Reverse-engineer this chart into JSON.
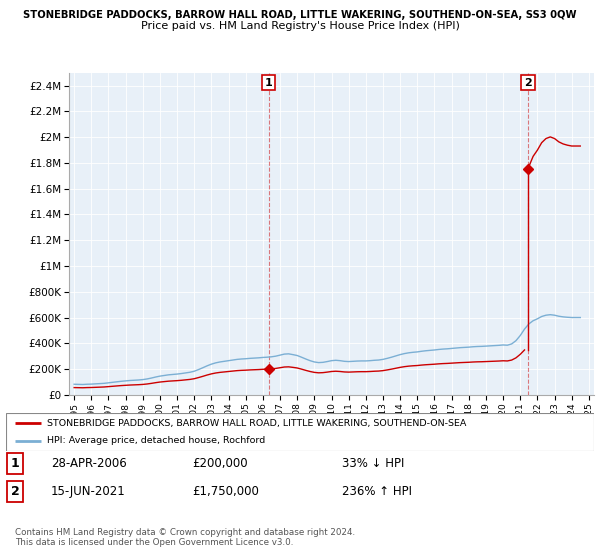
{
  "title_top": "STONEBRIDGE PADDOCKS, BARROW HALL ROAD, LITTLE WAKERING, SOUTHEND-ON-SEA, SS3 0QW",
  "title_sub": "Price paid vs. HM Land Registry's House Price Index (HPI)",
  "ytick_values": [
    0,
    200000,
    400000,
    600000,
    800000,
    1000000,
    1200000,
    1400000,
    1600000,
    1800000,
    2000000,
    2200000,
    2400000
  ],
  "ylim": [
    0,
    2500000
  ],
  "hpi_color": "#7bafd4",
  "price_color": "#cc0000",
  "dashed_color": "#cc0000",
  "sale1_date": "28-APR-2006",
  "sale1_price": 200000,
  "sale2_date": "15-JUN-2021",
  "sale2_price": 1750000,
  "sale1_hpi_pct": "33% ↓ HPI",
  "sale2_hpi_pct": "236% ↑ HPI",
  "legend_red": "STONEBRIDGE PADDOCKS, BARROW HALL ROAD, LITTLE WAKERING, SOUTHEND-ON-SEA",
  "legend_blue": "HPI: Average price, detached house, Rochford",
  "footnote": "Contains HM Land Registry data © Crown copyright and database right 2024.\nThis data is licensed under the Open Government Licence v3.0.",
  "x_start_year": 1995,
  "x_end_year": 2025,
  "hpi_data_years": [
    1995.0,
    1995.25,
    1995.5,
    1995.75,
    1996.0,
    1996.25,
    1996.5,
    1996.75,
    1997.0,
    1997.25,
    1997.5,
    1997.75,
    1998.0,
    1998.25,
    1998.5,
    1998.75,
    1999.0,
    1999.25,
    1999.5,
    1999.75,
    2000.0,
    2000.25,
    2000.5,
    2000.75,
    2001.0,
    2001.25,
    2001.5,
    2001.75,
    2002.0,
    2002.25,
    2002.5,
    2002.75,
    2003.0,
    2003.25,
    2003.5,
    2003.75,
    2004.0,
    2004.25,
    2004.5,
    2004.75,
    2005.0,
    2005.25,
    2005.5,
    2005.75,
    2006.0,
    2006.25,
    2006.5,
    2006.75,
    2007.0,
    2007.25,
    2007.5,
    2007.75,
    2008.0,
    2008.25,
    2008.5,
    2008.75,
    2009.0,
    2009.25,
    2009.5,
    2009.75,
    2010.0,
    2010.25,
    2010.5,
    2010.75,
    2011.0,
    2011.25,
    2011.5,
    2011.75,
    2012.0,
    2012.25,
    2012.5,
    2012.75,
    2013.0,
    2013.25,
    2013.5,
    2013.75,
    2014.0,
    2014.25,
    2014.5,
    2014.75,
    2015.0,
    2015.25,
    2015.5,
    2015.75,
    2016.0,
    2016.25,
    2016.5,
    2016.75,
    2017.0,
    2017.25,
    2017.5,
    2017.75,
    2018.0,
    2018.25,
    2018.5,
    2018.75,
    2019.0,
    2019.25,
    2019.5,
    2019.75,
    2020.0,
    2020.25,
    2020.5,
    2020.75,
    2021.0,
    2021.25,
    2021.5,
    2021.75,
    2022.0,
    2022.25,
    2022.5,
    2022.75,
    2023.0,
    2023.25,
    2023.5,
    2023.75,
    2024.0,
    2024.25,
    2024.5
  ],
  "hpi_data_values": [
    82000,
    81000,
    80000,
    82000,
    83000,
    85000,
    87000,
    89000,
    93000,
    97000,
    101000,
    105000,
    108000,
    111000,
    113000,
    115000,
    118000,
    123000,
    130000,
    138000,
    145000,
    150000,
    155000,
    158000,
    161000,
    165000,
    170000,
    175000,
    183000,
    196000,
    210000,
    225000,
    238000,
    248000,
    255000,
    260000,
    265000,
    270000,
    275000,
    278000,
    280000,
    283000,
    285000,
    287000,
    290000,
    292000,
    295000,
    300000,
    308000,
    316000,
    318000,
    312000,
    305000,
    292000,
    278000,
    265000,
    255000,
    250000,
    252000,
    258000,
    265000,
    268000,
    265000,
    260000,
    258000,
    260000,
    262000,
    263000,
    263000,
    265000,
    268000,
    270000,
    275000,
    283000,
    292000,
    302000,
    312000,
    320000,
    326000,
    330000,
    333000,
    338000,
    342000,
    345000,
    348000,
    352000,
    355000,
    357000,
    360000,
    363000,
    366000,
    368000,
    370000,
    373000,
    375000,
    376000,
    378000,
    380000,
    382000,
    384000,
    387000,
    385000,
    395000,
    420000,
    460000,
    510000,
    550000,
    575000,
    590000,
    608000,
    618000,
    622000,
    618000,
    610000,
    605000,
    602000,
    600000,
    600000,
    600000
  ],
  "sale1_x": 2006.33,
  "sale2_x": 2021.46,
  "chart_bg": "#e8f0f8",
  "fig_bg": "#ffffff"
}
